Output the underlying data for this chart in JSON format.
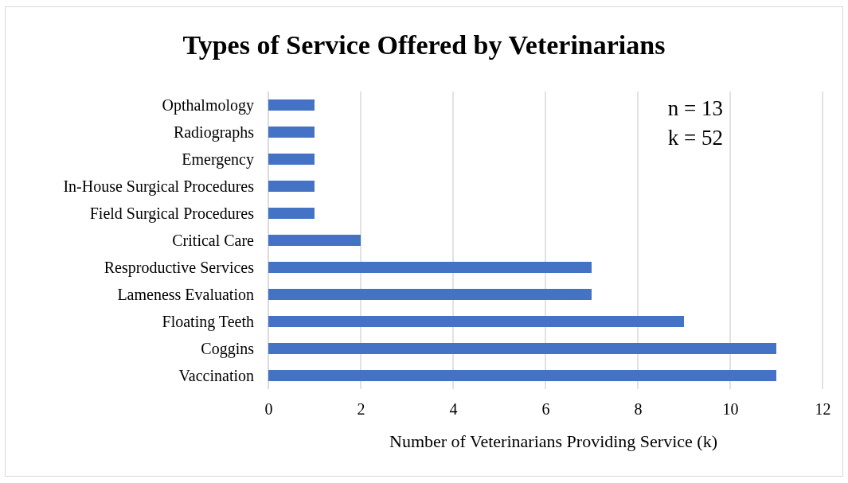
{
  "chart_data": {
    "type": "bar",
    "orientation": "horizontal",
    "title": "Types of Service Offered by Veterinarians",
    "xlabel": "Number of Veterinarians  Providing Service (k)",
    "categories": [
      "Opthalmology",
      "Radiographs",
      "Emergency",
      "In-House Surgical Procedures",
      "Field Surgical Procedures",
      "Critical Care",
      "Resproductive Services",
      "Lameness Evaluation",
      "Floating Teeth",
      "Coggins",
      "Vaccination"
    ],
    "values": [
      1,
      1,
      1,
      1,
      1,
      2,
      7,
      7,
      9,
      11,
      11
    ],
    "color": "#4472c4",
    "xlim": [
      0,
      12
    ],
    "xticks": [
      0,
      2,
      4,
      6,
      8,
      10,
      12
    ],
    "grid": "x",
    "annotations": [
      "n = 13",
      "k = 52"
    ]
  }
}
